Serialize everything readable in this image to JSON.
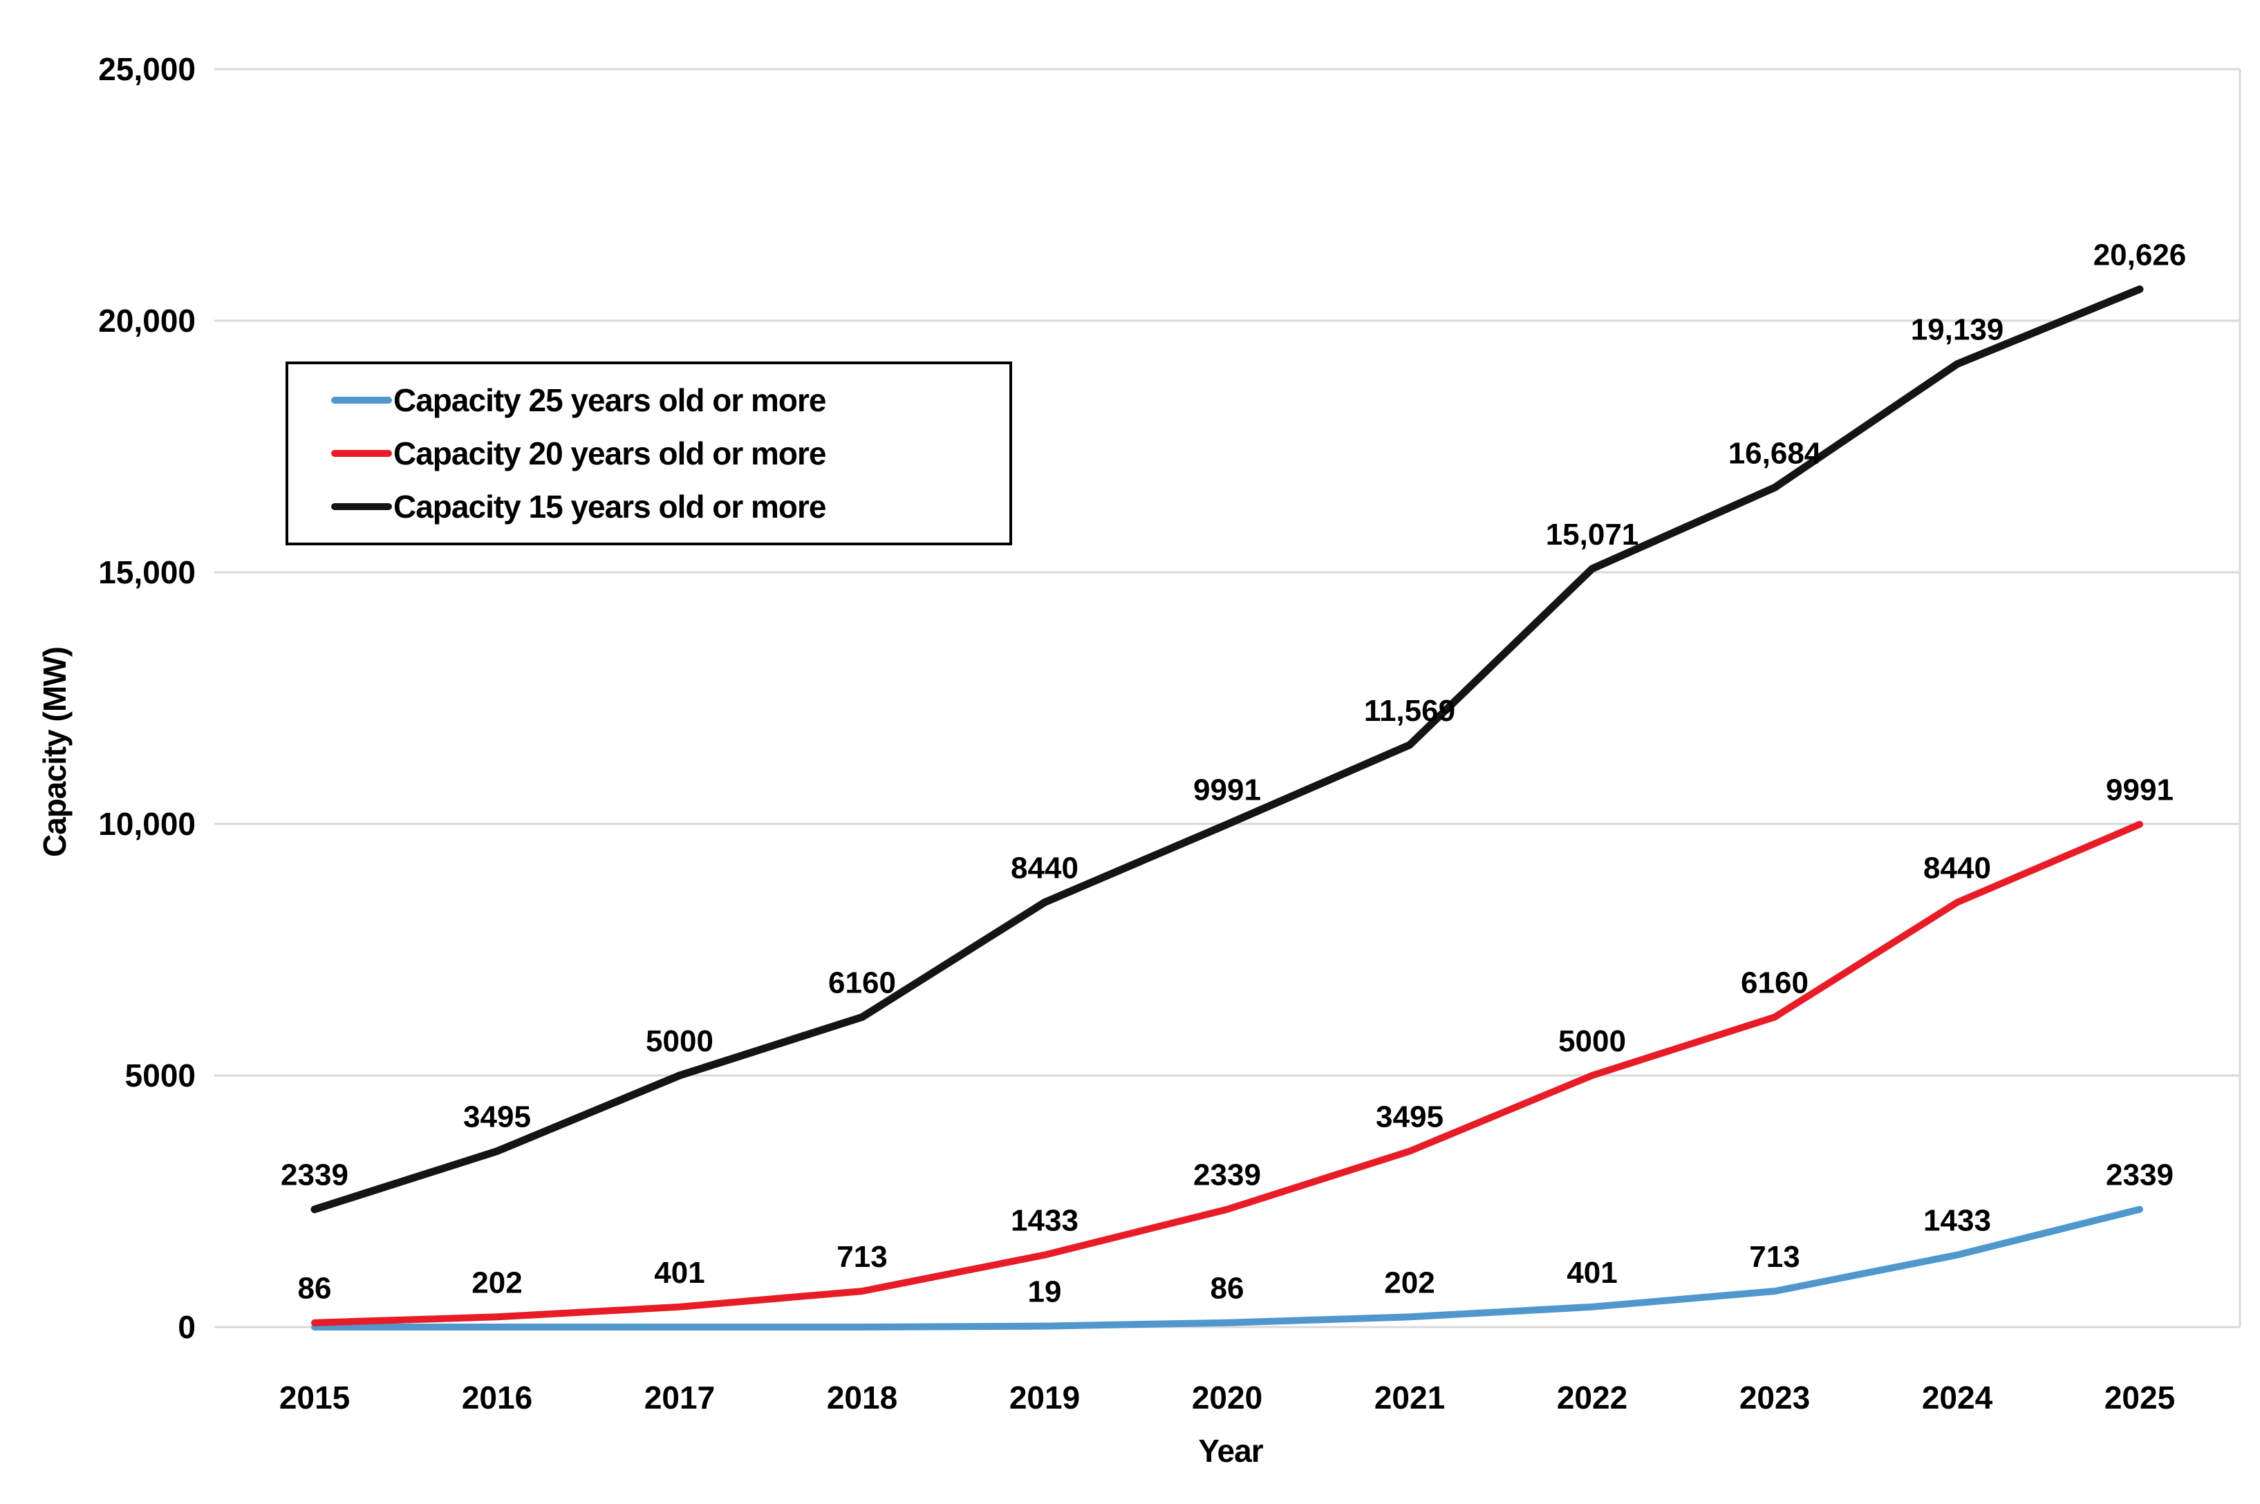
{
  "chart_data": {
    "type": "line",
    "title": "",
    "xlabel": "Year",
    "ylabel": "Capacity (MW)",
    "categories": [
      "2015",
      "2016",
      "2017",
      "2018",
      "2019",
      "2020",
      "2021",
      "2022",
      "2023",
      "2024",
      "2025"
    ],
    "ylim": [
      0,
      25000
    ],
    "grid": true,
    "legend_position": "inside-top-left",
    "y_ticks": [
      {
        "value": 25000,
        "label": "25,000"
      },
      {
        "value": 20000,
        "label": "20,000"
      },
      {
        "value": 15000,
        "label": "15,000"
      },
      {
        "value": 10000,
        "label": "10,000"
      },
      {
        "value": 5000,
        "label": "5000"
      },
      {
        "value": 0,
        "label": "0"
      }
    ],
    "series": [
      {
        "name": "Capacity 25 years old or more",
        "color": "#4f97cd",
        "values": [
          0,
          0,
          0,
          0,
          19,
          86,
          202,
          401,
          713,
          1433,
          2339
        ],
        "data_labels": [
          "",
          "",
          "",
          "",
          "19",
          "86",
          "202",
          "401",
          "713",
          "1433",
          "2339"
        ]
      },
      {
        "name": "Capacity 20 years old or more",
        "color": "#e81c26",
        "values": [
          86,
          202,
          401,
          713,
          1433,
          2339,
          3495,
          5000,
          6160,
          8440,
          9991
        ],
        "data_labels": [
          "86",
          "202",
          "401",
          "713",
          "1433",
          "2339",
          "3495",
          "5000",
          "6160",
          "8440",
          "9991"
        ]
      },
      {
        "name": "Capacity 15 years old or more",
        "color": "#141414",
        "values": [
          2339,
          3495,
          5000,
          6160,
          8440,
          9991,
          11569,
          15071,
          16684,
          19139,
          20626
        ],
        "data_labels": [
          "2339",
          "3495",
          "5000",
          "6160",
          "8440",
          "9991",
          "11,569",
          "15,071",
          "16,684",
          "19,139",
          "20,626"
        ]
      }
    ]
  },
  "colors": {
    "gridline": "#d9d9d9",
    "text": "#000000",
    "background": "#ffffff"
  }
}
